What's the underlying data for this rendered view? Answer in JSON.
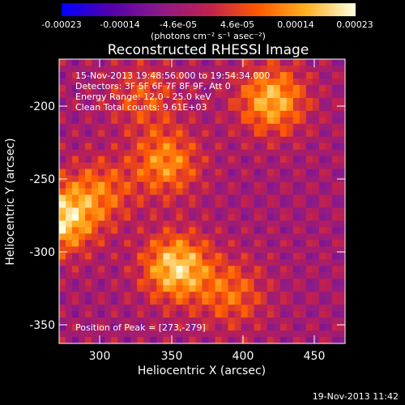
{
  "colorbar": {
    "ticks": [
      "-0.00023",
      "-0.00014",
      "-4.6e-05",
      "4.6e-05",
      "0.00014",
      "0.00023"
    ],
    "unit_label": "(photons cm⁻² s⁻¹ asec⁻²)",
    "range": [
      -0.00023,
      0.00023
    ]
  },
  "chart_data": {
    "type": "heatmap",
    "title": "Reconstructed RHESSI Image",
    "xlabel": "Heliocentric X (arcsec)",
    "ylabel": "Heliocentric Y (arcsec)",
    "xlim": [
      272,
      467
    ],
    "ylim": [
      -364,
      -169
    ],
    "xticks": [
      "300",
      "350",
      "400",
      "450"
    ],
    "yticks": [
      "-200",
      "-250",
      "-300",
      "-350"
    ],
    "annotations": [
      "15-Nov-2013 19:48:56.000 to 19:54:34.000",
      "Detectors: 3F 5F 6F 7F 8F 9F, Att 0",
      "Energy Range: 12.0 - 25.0 keV",
      "Clean     Total counts: 9.61E+03"
    ],
    "peak_label": "Position of Peak = [273,-279]",
    "peak": [
      273,
      -279
    ],
    "sources": [
      {
        "x": 352,
        "y": -312,
        "value": 0.00023
      },
      {
        "x": 417,
        "y": -197,
        "value": 0.0002
      },
      {
        "x": 273,
        "y": -279,
        "value": 0.00023
      },
      {
        "x": 345,
        "y": -240,
        "value": 0.00016
      },
      {
        "x": 300,
        "y": -260,
        "value": 0.00012
      },
      {
        "x": 390,
        "y": -330,
        "value": 0.00012
      },
      {
        "x": 330,
        "y": -195,
        "value": 0.0001
      }
    ],
    "colormap": [
      "#0000ff",
      "#5500aa",
      "#8a1a8a",
      "#c02050",
      "#ff5a00",
      "#ffb020",
      "#ffffe0"
    ]
  },
  "footer": "19-Nov-2013 11:42"
}
